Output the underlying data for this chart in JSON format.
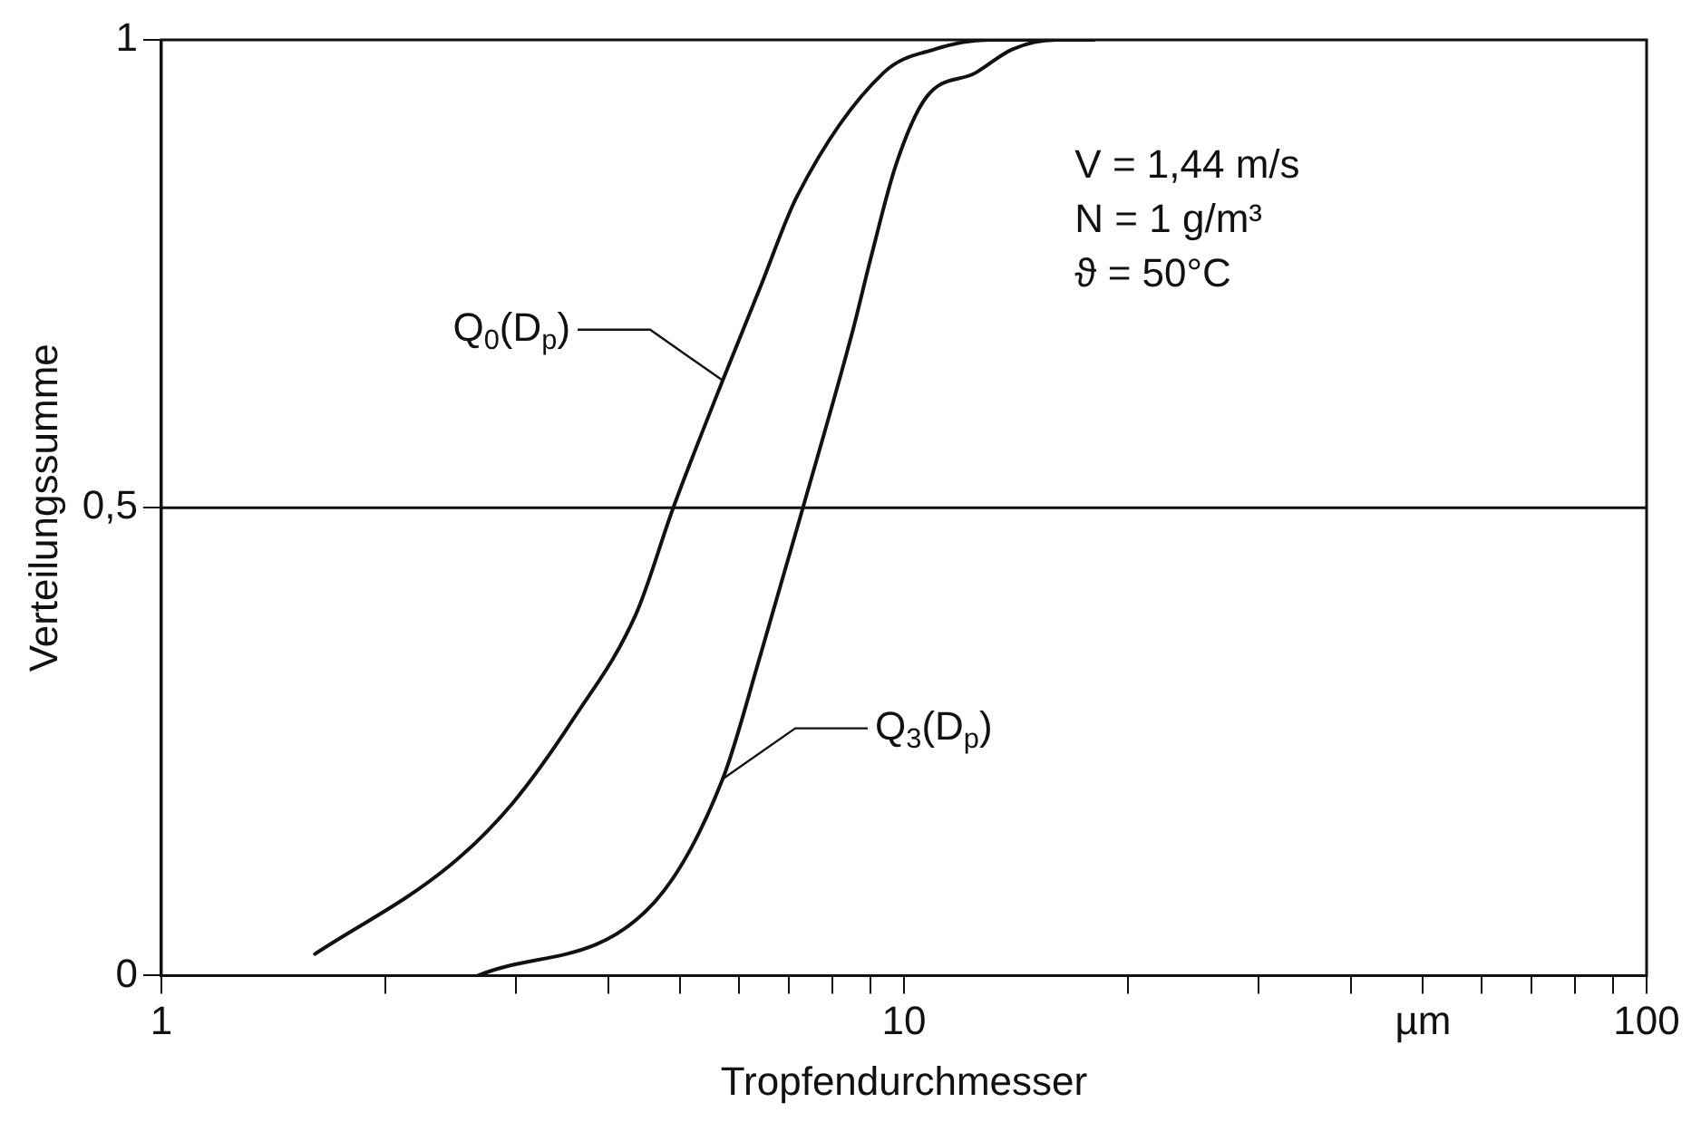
{
  "chart_data": {
    "type": "line",
    "xlabel": "Tropfendurchmesser",
    "ylabel": "Verteilungssumme",
    "log": "x",
    "xlim": [
      1,
      100
    ],
    "ylim": [
      0,
      1
    ],
    "xticks": [
      1,
      {
        "value": 2,
        "label": null
      },
      {
        "value": 3,
        "label": null
      },
      {
        "value": 4,
        "label": null
      },
      {
        "value": 5,
        "label": null
      },
      {
        "value": 6,
        "label": null
      },
      {
        "value": 7,
        "label": null
      },
      {
        "value": 8,
        "label": null
      },
      {
        "value": 9,
        "label": null
      },
      10,
      {
        "value": 20,
        "label": null
      },
      {
        "value": 30,
        "label": null
      },
      {
        "value": 40,
        "label": null
      },
      {
        "value": 50,
        "label": "µm"
      },
      {
        "value": 60,
        "label": null
      },
      {
        "value": 70,
        "label": null
      },
      {
        "value": 80,
        "label": null
      },
      {
        "value": 90,
        "label": null
      },
      100
    ],
    "yticks": [
      0,
      {
        "value": 0.5,
        "label": "0,5"
      },
      1
    ],
    "grid": false,
    "legend": false,
    "marker": "none",
    "line_style": "solid",
    "series": [
      {
        "color": "#111111",
        "x": [
          1.61,
          2.45,
          2.97,
          3.6,
          4.36,
          4.89,
          5.7,
          6.4,
          7.18,
          9.39,
          11,
          13,
          15,
          18
        ],
        "values": [
          0.023,
          0.118,
          0.184,
          0.276,
          0.387,
          0.5,
          0.636,
          0.735,
          0.833,
          0.965,
          0.99,
          1,
          1,
          1
        ]
      },
      {
        "color": "#111111",
        "x": [
          2.67,
          4.62,
          5.7,
          6.4,
          7.31,
          8.53,
          9.03,
          9.75,
          10.7,
          12.5,
          14,
          16,
          18
        ],
        "values": [
          0,
          0.079,
          0.21,
          0.341,
          0.5,
          0.689,
          0.768,
          0.866,
          0.938,
          0.965,
          0.99,
          1,
          1
        ]
      }
    ],
    "ref_lines": [
      {
        "axis": "y",
        "value": 0.5,
        "color": "#111111"
      }
    ],
    "annotations": [
      "V = 1,44 m/s",
      "N = 1 g/m³",
      "ϑ = 50°C",
      {
        "text": "Q$_{0}$(D$_{p}$)",
        "x": 5.7,
        "y": 0.636
      },
      {
        "text": "Q$_{3}$(D$_{p}$)",
        "x": 5.7,
        "y": 0.21
      }
    ]
  }
}
